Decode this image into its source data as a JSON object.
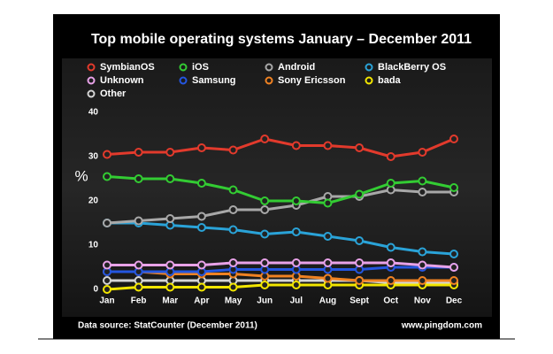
{
  "chart_data": {
    "type": "line",
    "title": "Top mobile operating systems January – December 2011",
    "ylabel": "%",
    "source": "Data source: StatCounter (December 2011)",
    "credit": "www.pingdom.com",
    "categories": [
      "Jan",
      "Feb",
      "Mar",
      "Apr",
      "May",
      "Jun",
      "Jul",
      "Aug",
      "Sept",
      "Oct",
      "Nov",
      "Dec"
    ],
    "ylim": [
      0,
      40
    ],
    "yticks": [
      0,
      10,
      20,
      30,
      40
    ],
    "grid": false,
    "series": [
      {
        "name": "SymbianOS",
        "color": "#e23a2c",
        "values": [
          30.5,
          31,
          31,
          32,
          31.5,
          34,
          32.5,
          32.5,
          32,
          30,
          31,
          34
        ]
      },
      {
        "name": "iOS",
        "color": "#33cc33",
        "values": [
          25.5,
          25,
          25,
          24,
          22.5,
          20,
          20,
          19.5,
          21.5,
          24,
          24.5,
          23
        ]
      },
      {
        "name": "Android",
        "color": "#a8a8a8",
        "values": [
          15,
          15.5,
          16,
          16.5,
          18,
          18,
          19,
          21,
          21,
          22.5,
          22,
          22
        ]
      },
      {
        "name": "BlackBerry OS",
        "color": "#2aa3d8",
        "values": [
          15,
          15,
          14.5,
          14,
          13.5,
          12.5,
          13,
          12,
          11,
          9.5,
          8.5,
          8
        ]
      },
      {
        "name": "Unknown",
        "color": "#e8a2e8",
        "values": [
          5.5,
          5.5,
          5.5,
          5.5,
          6,
          6,
          6,
          6,
          6,
          6,
          5.5,
          5
        ]
      },
      {
        "name": "Samsung",
        "color": "#2456e0",
        "values": [
          4,
          4,
          4,
          4,
          4.5,
          4.5,
          4.5,
          4.5,
          4.5,
          5,
          5,
          5
        ]
      },
      {
        "name": "Sony Ericsson",
        "color": "#f08222",
        "values": [
          4,
          4,
          3.5,
          3.5,
          3.5,
          3,
          3,
          2.5,
          2,
          2,
          2,
          2
        ]
      },
      {
        "name": "bada",
        "color": "#f2e600",
        "values": [
          0,
          0.5,
          0.5,
          0.5,
          0.5,
          1,
          1,
          1,
          1,
          1,
          1,
          1
        ]
      },
      {
        "name": "Other",
        "color": "#d4d4d4",
        "values": [
          2,
          2,
          2,
          2,
          2,
          2,
          2,
          2,
          2,
          1.5,
          1.5,
          1.5
        ]
      }
    ]
  }
}
